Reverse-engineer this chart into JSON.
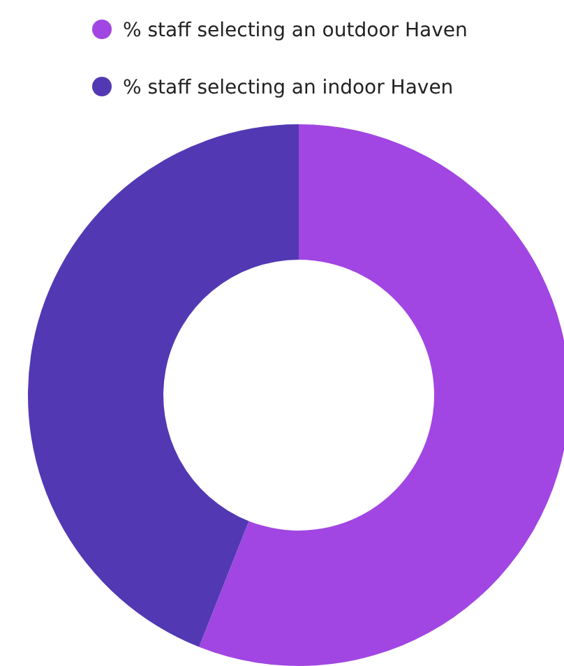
{
  "chart_data": {
    "type": "donut",
    "categories": [
      "% staff selecting an outdoor Haven",
      "% staff selecting an indoor Haven"
    ],
    "values": [
      56,
      44
    ],
    "colors": [
      "#a146e2",
      "#5239b3"
    ],
    "legend": "top"
  }
}
